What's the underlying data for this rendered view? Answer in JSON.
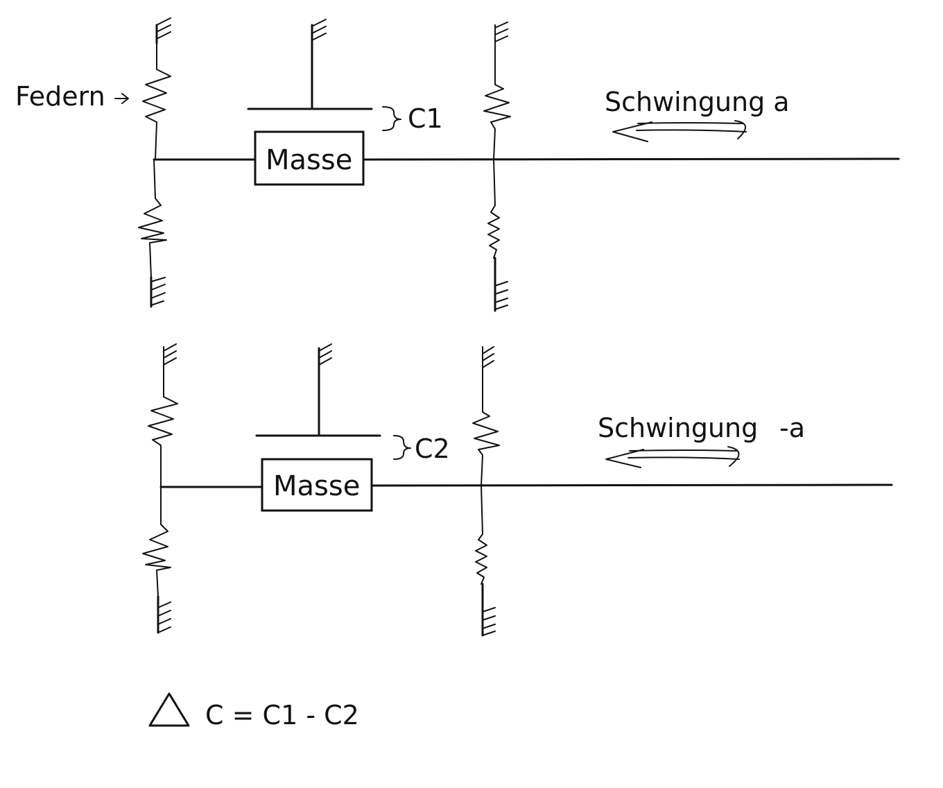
{
  "labels": {
    "springs": "Federn",
    "mass_top": "Masse",
    "mass_bottom": "Masse",
    "c1": "C1",
    "c2": "C2",
    "osc_top": "Schwingung a",
    "osc_bottom_word": "Schwingung",
    "osc_bottom_sign": "-a",
    "formula": "C = C1 - C2"
  }
}
